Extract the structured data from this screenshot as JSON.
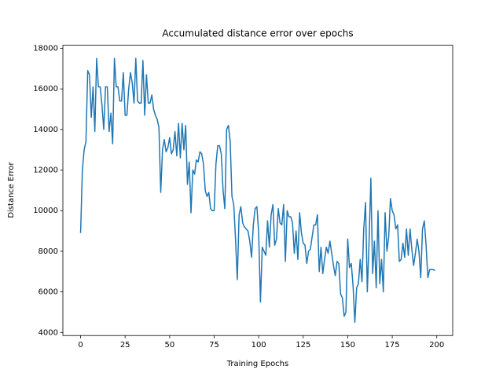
{
  "chart_data": {
    "type": "line",
    "title": "Accumulated distance error over epochs",
    "x_label": "Training Epochs",
    "y_label": "Distance Error",
    "color": "#1f77b4",
    "x": [
      0,
      1,
      2,
      3,
      4,
      5,
      6,
      7,
      8,
      9,
      10,
      11,
      12,
      13,
      14,
      15,
      16,
      17,
      18,
      19,
      20,
      21,
      22,
      23,
      24,
      25,
      26,
      27,
      28,
      29,
      30,
      31,
      32,
      33,
      34,
      35,
      36,
      37,
      38,
      39,
      40,
      41,
      42,
      43,
      44,
      45,
      46,
      47,
      48,
      49,
      50,
      51,
      52,
      53,
      54,
      55,
      56,
      57,
      58,
      59,
      60,
      61,
      62,
      63,
      64,
      65,
      66,
      67,
      68,
      69,
      70,
      71,
      72,
      73,
      74,
      75,
      76,
      77,
      78,
      79,
      80,
      81,
      82,
      83,
      84,
      85,
      86,
      87,
      88,
      89,
      90,
      91,
      92,
      93,
      94,
      95,
      96,
      97,
      98,
      99,
      100,
      101,
      102,
      103,
      104,
      105,
      106,
      107,
      108,
      109,
      110,
      111,
      112,
      113,
      114,
      115,
      116,
      117,
      118,
      119,
      120,
      121,
      122,
      123,
      124,
      125,
      126,
      127,
      128,
      129,
      130,
      131,
      132,
      133,
      134,
      135,
      136,
      137,
      138,
      139,
      140,
      141,
      142,
      143,
      144,
      145,
      146,
      147,
      148,
      149,
      150,
      151,
      152,
      153,
      154,
      155,
      156,
      157,
      158,
      159,
      160,
      161,
      162,
      163,
      164,
      165,
      166,
      167,
      168,
      169,
      170,
      171,
      172,
      173,
      174,
      175,
      176,
      177,
      178,
      179,
      180,
      181,
      182,
      183,
      184,
      185,
      186,
      187,
      188,
      189,
      190,
      191,
      192,
      193,
      194,
      195,
      196,
      197,
      198,
      199
    ],
    "values": [
      8900,
      12000,
      13000,
      13400,
      16900,
      16700,
      14600,
      16100,
      13900,
      17500,
      16100,
      16100,
      15200,
      14000,
      16100,
      16100,
      13900,
      14800,
      13300,
      17500,
      16100,
      16100,
      15400,
      15400,
      16800,
      14700,
      14700,
      16000,
      16800,
      16300,
      15300,
      17500,
      15400,
      15300,
      15300,
      17400,
      14700,
      16700,
      15300,
      15300,
      15700,
      15000,
      14700,
      14500,
      14100,
      10900,
      13000,
      13500,
      12900,
      13100,
      13600,
      12800,
      13000,
      13900,
      12700,
      14300,
      12600,
      14300,
      13000,
      14200,
      11300,
      12400,
      9900,
      12000,
      11800,
      12500,
      12400,
      12900,
      12800,
      12300,
      11000,
      10700,
      10900,
      10100,
      10000,
      10000,
      12300,
      13200,
      13200,
      12800,
      11000,
      10100,
      14000,
      14200,
      13400,
      10700,
      10300,
      8600,
      6600,
      9800,
      10200,
      9400,
      9200,
      9100,
      9000,
      8500,
      7700,
      9300,
      10100,
      10200,
      8900,
      5500,
      8200,
      8000,
      7800,
      9500,
      8200,
      9800,
      10300,
      8300,
      8600,
      10100,
      9400,
      9300,
      10300,
      7500,
      10000,
      9700,
      9700,
      9400,
      7900,
      9000,
      7600,
      9900,
      8900,
      8400,
      8300,
      7400,
      8000,
      8100,
      8700,
      9300,
      9300,
      9800,
      7000,
      8200,
      6900,
      7600,
      8200,
      7900,
      8500,
      7900,
      7300,
      6800,
      7500,
      7400,
      5900,
      5700,
      4800,
      5000,
      8600,
      7200,
      7400,
      6300,
      4500,
      6200,
      6400,
      7600,
      6500,
      9100,
      10400,
      6000,
      8500,
      11600,
      6900,
      8500,
      6200,
      10000,
      6400,
      7600,
      6000,
      9900,
      8000,
      8700,
      10600,
      10000,
      9800,
      9100,
      9300,
      7500,
      7600,
      8400,
      7700,
      9100,
      7800,
      9100,
      8100,
      7300,
      7900,
      8600,
      8000,
      6700,
      9100,
      9500,
      8300,
      6700,
      7100,
      7100,
      7100,
      7050
    ],
    "xlim": [
      -9.95,
      208.95
    ],
    "xticks": [
      0,
      25,
      50,
      75,
      100,
      125,
      150,
      175,
      200
    ],
    "ylim": [
      3850,
      18150
    ],
    "yticks": [
      4000,
      6000,
      8000,
      10000,
      12000,
      14000,
      16000,
      18000
    ]
  }
}
